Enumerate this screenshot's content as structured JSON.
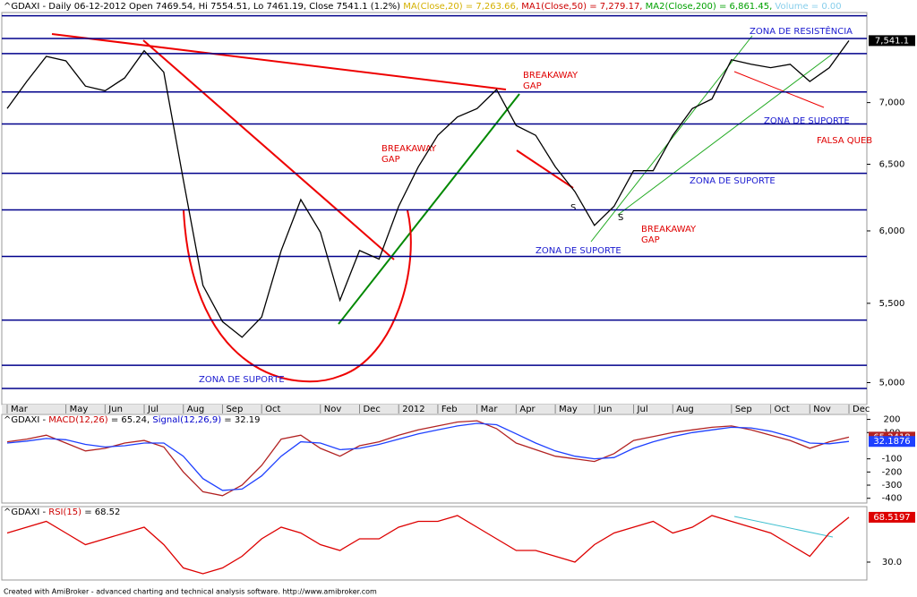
{
  "chart_data": [
    {
      "type": "line",
      "title_parts": [
        {
          "text": "^GDAXI - Daily 06-12-2012 Open 7469.54, Hi 7554.51, Lo 7461.19, Close 7541.1 (1.2%)",
          "color": "#000000"
        },
        {
          "text": " MA(Close,20) = 7,263.66,",
          "color": "#d4b000"
        },
        {
          "text": " MA1(Close,50) = 7,279.17,",
          "color": "#cc0000"
        },
        {
          "text": " MA2(Close,200) = 6,861.45,",
          "color": "#00a000"
        },
        {
          "text": " Volume = 0.00",
          "color": "#87ceeb"
        }
      ],
      "categories": [
        "Mar",
        null,
        null,
        "May",
        null,
        "Jun",
        null,
        "Jul",
        null,
        "Aug",
        null,
        "Sep",
        null,
        "Oct",
        null,
        null,
        "Nov",
        null,
        "Dec",
        null,
        "2012",
        null,
        "Feb",
        null,
        "Mar",
        null,
        "Apr",
        null,
        "May",
        null,
        "Jun",
        null,
        "Jul",
        null,
        "Aug",
        null,
        null,
        "Sep",
        null,
        "Oct",
        null,
        "Nov",
        null,
        "Dec"
      ],
      "series": [
        {
          "color": "#000000",
          "values": [
            6950,
            7180,
            7400,
            7360,
            7140,
            7100,
            7210,
            7450,
            7260,
            6380,
            5620,
            5380,
            5280,
            5410,
            5860,
            6230,
            5990,
            5520,
            5860,
            5800,
            6180,
            6480,
            6730,
            6880,
            6950,
            7110,
            6810,
            6730,
            6480,
            6290,
            6040,
            6180,
            6450,
            6450,
            6730,
            6950,
            7030,
            7370,
            7330,
            7300,
            7330,
            7180,
            7300,
            7541.1
          ]
        }
      ],
      "ylim": [
        4870,
        7800
      ],
      "log": true,
      "yticks": [
        {
          "value": 5000,
          "label": "5,000"
        },
        {
          "value": 5500,
          "label": "5,500"
        },
        {
          "value": 6000,
          "label": "6,000"
        },
        {
          "value": 6500,
          "label": "6,500"
        },
        {
          "value": 7000,
          "label": "7,000"
        }
      ],
      "last_label": "7,541.1",
      "levels": [
        7770,
        7561,
        7425,
        7090,
        6823,
        6430,
        6153,
        5819,
        5390,
        5105,
        4965
      ],
      "level_color": "#00008b",
      "annotations": [
        "ZONA DE RESISTÊNCIA",
        "ZONA DE SUPORTE",
        "ZONA DE SUPORTE",
        "ZONA DE SUPORTE",
        "ZONA DE SUPORTE",
        "BREAKAWAY",
        "GAP",
        "BREAKAWAY",
        "GAP",
        "BREAKAWAY",
        "GAP",
        "FALSA QUEB",
        "S",
        "S"
      ]
    },
    {
      "type": "line",
      "title_parts": [
        {
          "text": "^GDAXI - ",
          "color": "#000000"
        },
        {
          "text": "MACD(12,26)",
          "color": "#cc0000"
        },
        {
          "text": " = 65.24, ",
          "color": "#000000"
        },
        {
          "text": "Signal(12,26,9)",
          "color": "#0000cc"
        },
        {
          "text": " = 32.19",
          "color": "#000000"
        }
      ],
      "series": [
        {
          "color": "#b22222",
          "values": [
            30,
            50,
            80,
            20,
            -40,
            -20,
            20,
            40,
            -10,
            -200,
            -350,
            -380,
            -300,
            -150,
            50,
            80,
            -20,
            -80,
            0,
            30,
            80,
            120,
            150,
            180,
            190,
            130,
            20,
            -30,
            -80,
            -100,
            -120,
            -60,
            40,
            70,
            100,
            120,
            140,
            150,
            120,
            80,
            40,
            -20,
            30,
            65.2418
          ]
        },
        {
          "color": "#1e40ff",
          "values": [
            20,
            35,
            55,
            45,
            10,
            -10,
            0,
            20,
            20,
            -80,
            -250,
            -340,
            -330,
            -230,
            -80,
            30,
            20,
            -30,
            -20,
            10,
            50,
            90,
            120,
            150,
            170,
            160,
            90,
            20,
            -40,
            -80,
            -100,
            -90,
            -20,
            30,
            70,
            100,
            120,
            140,
            135,
            110,
            70,
            20,
            15,
            32.1876
          ]
        }
      ],
      "ylim": [
        -436,
        238
      ],
      "yticks": [
        200,
        100,
        -100,
        -200,
        -300,
        -400
      ]
    },
    {
      "type": "line",
      "title_parts": [
        {
          "text": "^GDAXI - ",
          "color": "#000000"
        },
        {
          "text": "RSI(15)",
          "color": "#cc0000"
        },
        {
          "text": " = 68.52",
          "color": "#000000"
        }
      ],
      "series": [
        {
          "color": "#dd0000",
          "values": [
            55,
            60,
            65,
            55,
            45,
            50,
            55,
            60,
            45,
            25,
            20,
            25,
            35,
            50,
            60,
            55,
            45,
            40,
            50,
            50,
            60,
            65,
            65,
            70,
            60,
            50,
            40,
            40,
            35,
            30,
            45,
            55,
            60,
            65,
            55,
            60,
            70,
            65,
            60,
            55,
            45,
            35,
            55,
            68.5197
          ]
        }
      ],
      "ylim": [
        14.6,
        77.7
      ],
      "yticks": [
        {
          "value": 30,
          "label": "30.0"
        }
      ]
    }
  ],
  "footer": "Created with AmiBroker - advanced charting and technical analysis software. http://www.amibroker.com"
}
